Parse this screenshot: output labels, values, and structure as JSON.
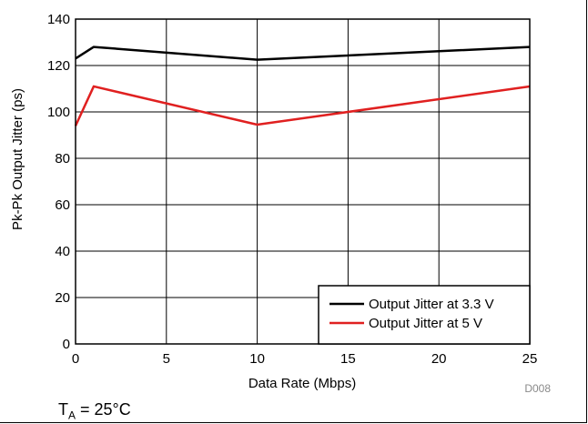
{
  "chart_data": {
    "type": "line",
    "title": "",
    "xlabel": "Data Rate (Mbps)",
    "ylabel": "Pk-Pk Output Jitter (ps)",
    "xlim": [
      0,
      25
    ],
    "ylim": [
      0,
      140
    ],
    "xticks": [
      0,
      5,
      10,
      15,
      20,
      25
    ],
    "yticks": [
      0,
      20,
      40,
      60,
      80,
      100,
      120,
      140
    ],
    "grid": true,
    "legend_position": "bottom-right",
    "series": [
      {
        "name": "Output Jitter at 3.3 V",
        "color": "#000000",
        "x": [
          0,
          1,
          10,
          25
        ],
        "y": [
          123,
          128,
          122.5,
          128
        ]
      },
      {
        "name": "Output Jitter at 5 V",
        "color": "#e02020",
        "x": [
          0,
          1,
          10,
          25
        ],
        "y": [
          94,
          111,
          94.5,
          111
        ]
      }
    ]
  },
  "figure_code": "D008",
  "condition": {
    "symbol": "T",
    "subscript": "A",
    "text": " = 25°C"
  }
}
